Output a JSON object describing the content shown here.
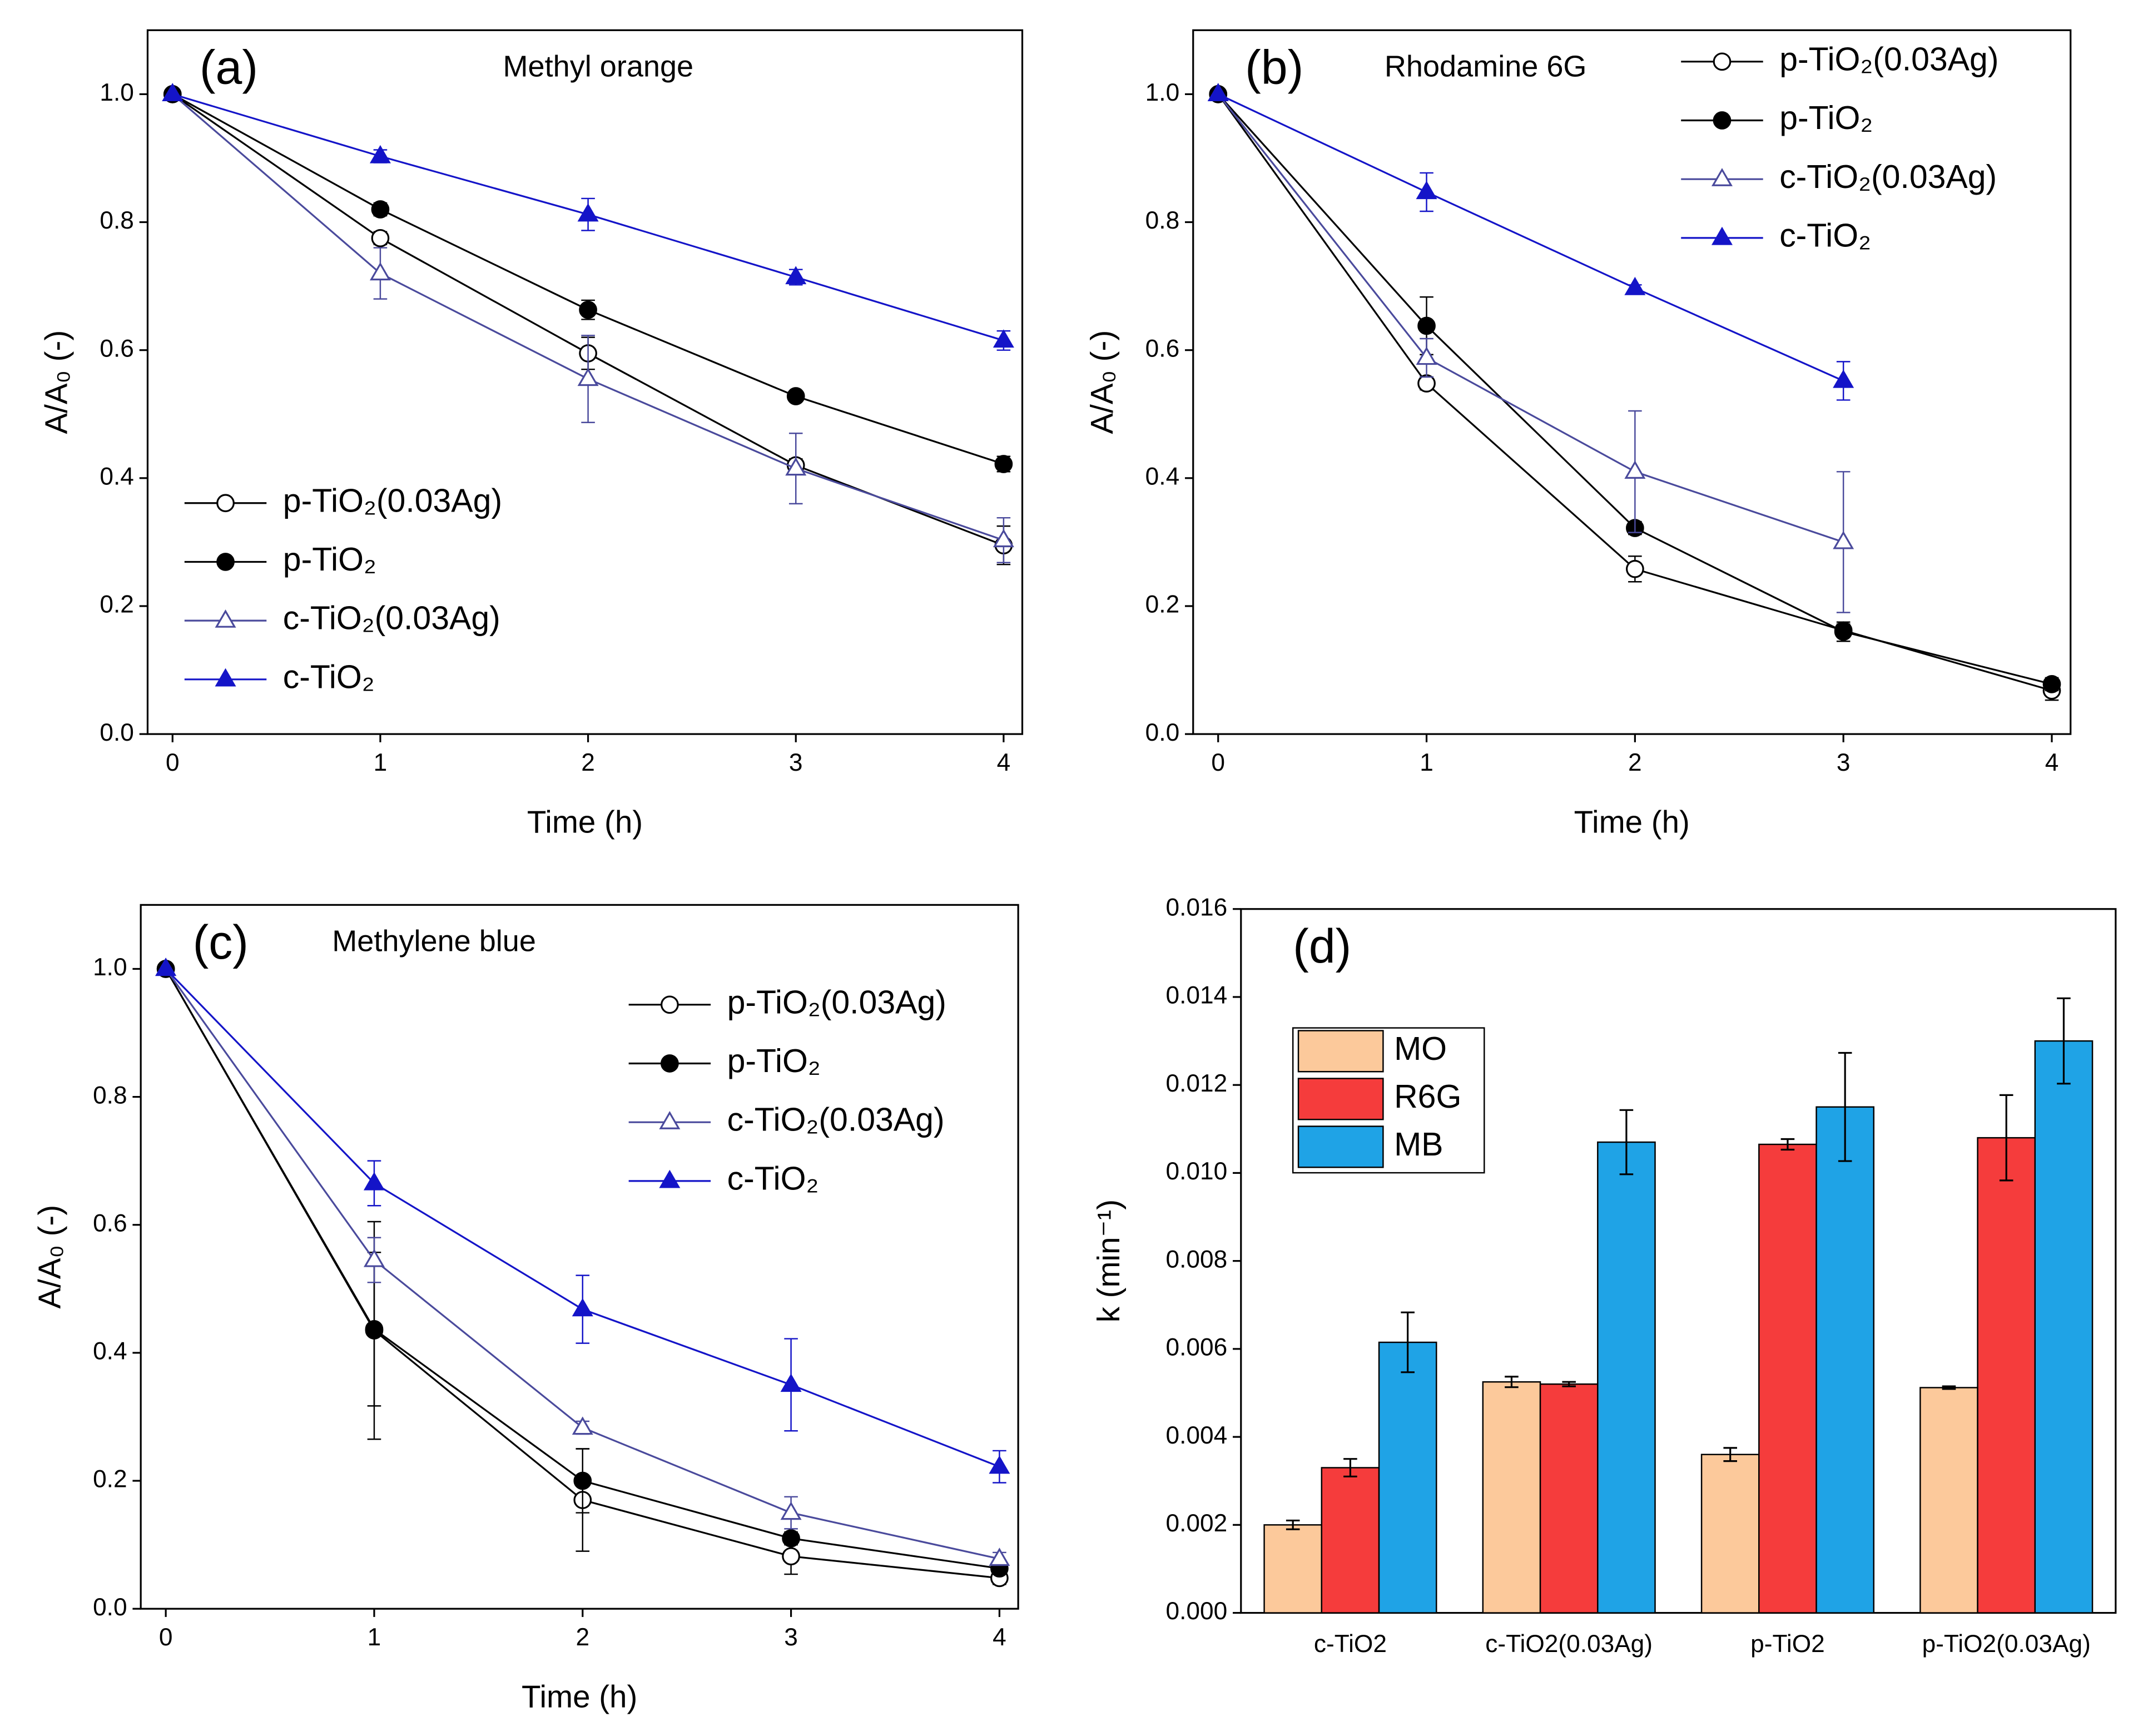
{
  "chart_data": [
    {
      "type": "line",
      "panel_label": "(a)",
      "annotation": "Methyl orange",
      "annotation_color": "#f0923a",
      "x_label": "Time (h)",
      "y_label": "A/A₀ (-)",
      "legend": "lower left",
      "x": [
        0,
        1,
        2,
        3,
        4
      ],
      "xlim": [
        -0.12,
        4.09
      ],
      "xticks": [
        0,
        1,
        2,
        3,
        4
      ],
      "ylim": [
        0,
        1.1
      ],
      "yticks": [
        {
          "value": 0,
          "label": "0.0"
        },
        {
          "value": 0.2,
          "label": "0.2"
        },
        {
          "value": 0.4,
          "label": "0.4"
        },
        {
          "value": 0.6,
          "label": "0.6"
        },
        {
          "value": 0.8,
          "label": "0.8"
        },
        {
          "value": 1,
          "label": "1.0"
        }
      ],
      "series": [
        {
          "name": "p-TiO₂(0.03Ag)",
          "color": "#000000",
          "marker": "circle",
          "filled": false,
          "values": [
            1,
            0.775,
            0.595,
            0.42,
            0.295
          ],
          "errors": [
            null,
            0.01,
            0.025,
            0.01,
            0.03
          ]
        },
        {
          "name": "p-TiO₂",
          "color": "#000000",
          "marker": "circle",
          "filled": true,
          "values": [
            1,
            0.82,
            0.663,
            0.528,
            0.422
          ],
          "errors": [
            null,
            0.01,
            0.015,
            0.005,
            0.012
          ]
        },
        {
          "name": "c-TiO₂(0.03Ag)",
          "color": "#4a4a9c",
          "marker": "triangle",
          "filled": false,
          "values": [
            1,
            0.72,
            0.555,
            0.415,
            0.303
          ],
          "errors": [
            null,
            0.04,
            0.068,
            0.055,
            0.035
          ]
        },
        {
          "name": "c-TiO₂",
          "color": "#1414c8",
          "marker": "triangle",
          "filled": true,
          "values": [
            1,
            0.903,
            0.812,
            0.714,
            0.615
          ],
          "errors": [
            null,
            0.01,
            0.025,
            0.012,
            0.015
          ]
        }
      ]
    },
    {
      "type": "line",
      "panel_label": "(b)",
      "annotation": "Rhodamine 6G",
      "annotation_color": "#e8262a",
      "x_label": "Time (h)",
      "y_label": "A/A₀ (-)",
      "legend": "upper right",
      "x": [
        0,
        1,
        2,
        3,
        4
      ],
      "xlim": [
        -0.12,
        4.09
      ],
      "xticks": [
        0,
        1,
        2,
        3,
        4
      ],
      "ylim": [
        0,
        1.1
      ],
      "yticks": [
        {
          "value": 0,
          "label": "0.0"
        },
        {
          "value": 0.2,
          "label": "0.2"
        },
        {
          "value": 0.4,
          "label": "0.4"
        },
        {
          "value": 0.6,
          "label": "0.6"
        },
        {
          "value": 0.8,
          "label": "0.8"
        },
        {
          "value": 1,
          "label": "1.0"
        }
      ],
      "series": [
        {
          "name": "p-TiO₂(0.03Ag)",
          "color": "#000000",
          "marker": "circle",
          "filled": false,
          "values": [
            1,
            0.548,
            0.258,
            0.162,
            0.068
          ],
          "errors": [
            null,
            0.01,
            0.02,
            0.01,
            0.015
          ]
        },
        {
          "name": "p-TiO₂",
          "color": "#000000",
          "marker": "circle",
          "filled": true,
          "values": [
            1,
            0.638,
            0.322,
            0.16,
            0.078
          ],
          "errors": [
            null,
            0.045,
            0.01,
            0.015,
            0.01
          ]
        },
        {
          "name": "c-TiO₂(0.03Ag)",
          "color": "#4a4a9c",
          "marker": "triangle",
          "filled": false,
          "values": [
            1,
            0.588,
            0.41,
            0.3,
            null
          ],
          "errors": [
            null,
            0.03,
            0.095,
            0.11,
            null
          ]
        },
        {
          "name": "c-TiO₂",
          "color": "#1414c8",
          "marker": "triangle",
          "filled": true,
          "values": [
            1,
            0.847,
            0.697,
            0.552,
            null
          ],
          "errors": [
            null,
            0.03,
            0.005,
            0.03,
            null
          ]
        }
      ]
    },
    {
      "type": "line",
      "panel_label": "(c)",
      "annotation": "Methylene blue",
      "annotation_color": "#1a1a80",
      "x_label": "Time (h)",
      "y_label": "A/A₀ (-)",
      "legend": "upper right",
      "x": [
        0,
        1,
        2,
        3,
        4
      ],
      "xlim": [
        -0.12,
        4.09
      ],
      "xticks": [
        0,
        1,
        2,
        3,
        4
      ],
      "ylim": [
        0,
        1.1
      ],
      "yticks": [
        {
          "value": 0,
          "label": "0.0"
        },
        {
          "value": 0.2,
          "label": "0.2"
        },
        {
          "value": 0.4,
          "label": "0.4"
        },
        {
          "value": 0.6,
          "label": "0.6"
        },
        {
          "value": 0.8,
          "label": "0.8"
        },
        {
          "value": 1,
          "label": "1.0"
        }
      ],
      "series": [
        {
          "name": "p-TiO₂(0.03Ag)",
          "color": "#000000",
          "marker": "circle",
          "filled": false,
          "values": [
            1,
            0.435,
            0.17,
            0.082,
            0.048
          ],
          "errors": [
            null,
            0.17,
            0.08,
            0.028,
            0.01
          ]
        },
        {
          "name": "p-TiO₂",
          "color": "#000000",
          "marker": "circle",
          "filled": true,
          "values": [
            1,
            0.437,
            0.2,
            0.11,
            0.063
          ],
          "errors": [
            null,
            0.12,
            0.05,
            0.01,
            0.005
          ]
        },
        {
          "name": "c-TiO₂(0.03Ag)",
          "color": "#4a4a9c",
          "marker": "triangle",
          "filled": false,
          "values": [
            1,
            0.545,
            0.283,
            0.15,
            0.078
          ],
          "errors": [
            null,
            0.035,
            0.01,
            0.025,
            0.01
          ]
        },
        {
          "name": "c-TiO₂",
          "color": "#1414c8",
          "marker": "triangle",
          "filled": true,
          "values": [
            1,
            0.665,
            0.468,
            0.35,
            0.222
          ],
          "errors": [
            null,
            0.035,
            0.053,
            0.072,
            0.025
          ]
        }
      ]
    },
    {
      "type": "bar",
      "panel_label": "(d)",
      "y_label": "k (min⁻¹)",
      "legend": "upper left",
      "categories": [
        "c-TiO2",
        "c-TiO2(0.03Ag)",
        "p-TiO2",
        "p-TiO2(0.03Ag)"
      ],
      "ylim": [
        0,
        0.016
      ],
      "yticks": [
        {
          "value": 0,
          "label": "0.000"
        },
        {
          "value": 0.002,
          "label": "0.002"
        },
        {
          "value": 0.004,
          "label": "0.004"
        },
        {
          "value": 0.006,
          "label": "0.006"
        },
        {
          "value": 0.008,
          "label": "0.008"
        },
        {
          "value": 0.01,
          "label": "0.010"
        },
        {
          "value": 0.012,
          "label": "0.012"
        },
        {
          "value": 0.014,
          "label": "0.014"
        },
        {
          "value": 0.016,
          "label": "0.016"
        }
      ],
      "series": [
        {
          "name": "MO",
          "color": "#fcc99b",
          "values": [
            0.002,
            0.00525,
            0.0036,
            0.00512
          ],
          "errors": [
            0.0001,
            0.00012,
            0.00015,
            3e-05
          ]
        },
        {
          "name": "R6G",
          "color": "#f53c3c",
          "values": [
            0.0033,
            0.0052,
            0.01065,
            0.0108
          ],
          "errors": [
            0.0002,
            5e-05,
            0.00012,
            0.00097
          ]
        },
        {
          "name": "MB",
          "color": "#1fa3e6",
          "values": [
            0.00615,
            0.0107,
            0.0115,
            0.013
          ],
          "errors": [
            0.00068,
            0.00073,
            0.00123,
            0.00097
          ]
        }
      ]
    }
  ]
}
